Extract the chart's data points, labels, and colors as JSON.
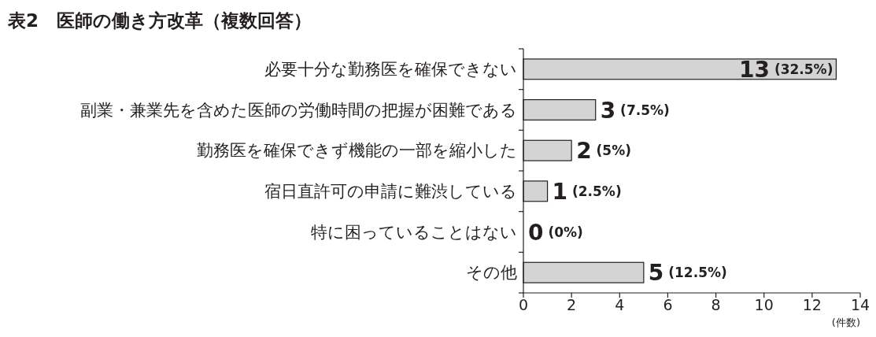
{
  "chart_data": {
    "type": "bar",
    "orientation": "horizontal",
    "title": "表2　医師の働き方改革（複数回答）",
    "xlabel": "(件数)",
    "categories": [
      "必要十分な勤務医を確保できない",
      "副業・兼業先を含めた医師の労働時間の把握が困難である",
      "勤務医を確保できず機能の一部を縮小した",
      "宿日直許可の申請に難渋している",
      "特に困っていることはない",
      "その他"
    ],
    "values": [
      13,
      3,
      2,
      1,
      0,
      5
    ],
    "value_labels": [
      "13 (32.5%)",
      "3 (7.5%)",
      "2 (5%)",
      "1 (2.5%)",
      "0 (0%)",
      "5 (12.5%)"
    ],
    "color": "#d4d4d4",
    "xlim": [
      0,
      14
    ],
    "xticks": [
      0,
      2,
      4,
      6,
      8,
      10,
      12,
      14
    ],
    "grid": false
  }
}
